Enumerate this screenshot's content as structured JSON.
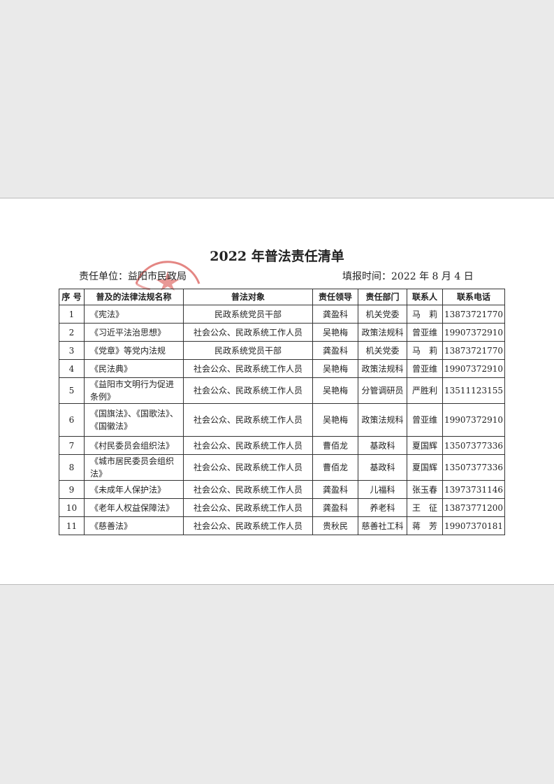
{
  "header": {
    "title": "2022 年普法责任清单",
    "unit": "责任单位：益阳市民政局",
    "date": "填报时间：2022 年 8 月 4 日"
  },
  "table": {
    "columns": [
      "序 号",
      "普及的法律法规名称",
      "普法对象",
      "责任领导",
      "责任部门",
      "联系人",
      "联系电话"
    ],
    "rows": [
      [
        "1",
        "《宪法》",
        "民政系统党员干部",
        "龚盈科",
        "机关党委",
        "马　莉",
        "13873721770"
      ],
      [
        "2",
        "《习近平法治思想》",
        "社会公众、民政系统工作人员",
        "吴艳梅",
        "政策法规科",
        "曾亚维",
        "19907372910"
      ],
      [
        "3",
        "《党章》等党内法规",
        "民政系统党员干部",
        "龚盈科",
        "机关党委",
        "马　莉",
        "13873721770"
      ],
      [
        "4",
        "《民法典》",
        "社会公众、民政系统工作人员",
        "吴艳梅",
        "政策法规科",
        "曾亚维",
        "19907372910"
      ],
      [
        "5",
        "《益阳市文明行为促进条例》",
        "社会公众、民政系统工作人员",
        "吴艳梅",
        "分管调研员",
        "严胜利",
        "13511123155"
      ],
      [
        "6",
        "《国旗法》、《国歌法》、《国徽法》",
        "社会公众、民政系统工作人员",
        "吴艳梅",
        "政策法规科",
        "曾亚维",
        "19907372910"
      ],
      [
        "7",
        "《村民委员会组织法》",
        "社会公众、民政系统工作人员",
        "曹佰龙",
        "基政科",
        "夏国辉",
        "13507377336"
      ],
      [
        "8",
        "《城市居民委员会组织法》",
        "社会公众、民政系统工作人员",
        "曹佰龙",
        "基政科",
        "夏国辉",
        "13507377336"
      ],
      [
        "9",
        "《未成年人保护法》",
        "社会公众、民政系统工作人员",
        "龚盈科",
        "儿福科",
        "张玉春",
        "13973731146"
      ],
      [
        "10",
        "《老年人权益保障法》",
        "社会公众、民政系统工作人员",
        "龚盈科",
        "养老科",
        "王　征",
        "13873771200"
      ],
      [
        "11",
        "《慈善法》",
        "社会公众、民政系统工作人员",
        "贵秋民",
        "慈善社工科",
        "蒋　芳",
        "19907370181"
      ]
    ]
  }
}
